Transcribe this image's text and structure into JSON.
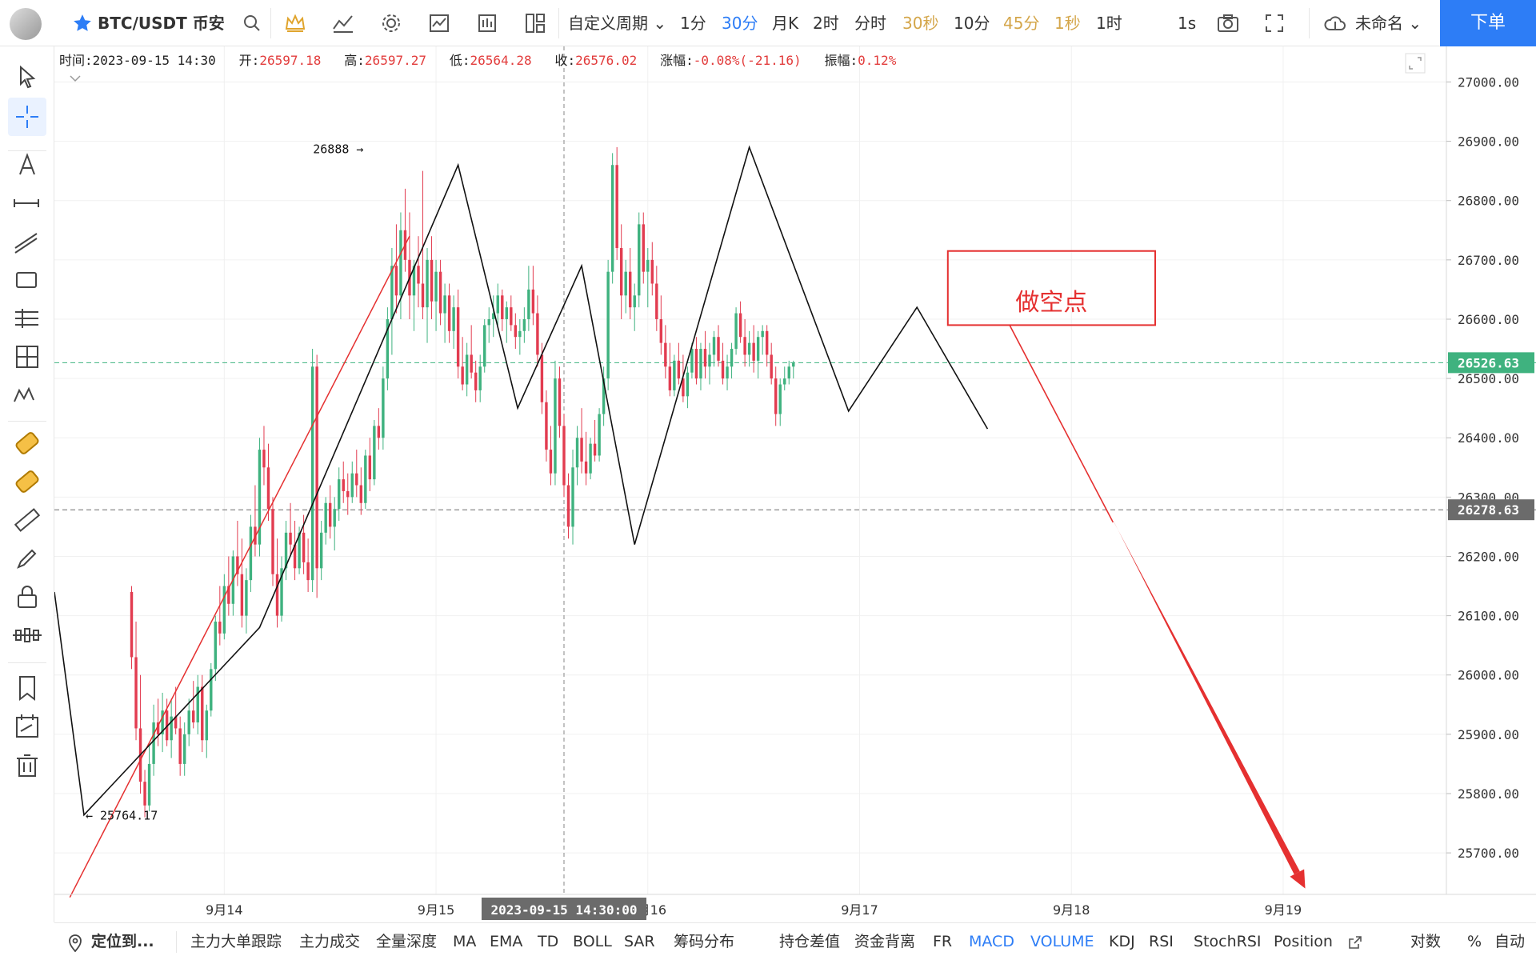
{
  "topbar": {
    "symbol": "BTC/USDT 币安",
    "custom_period": "自定义周期",
    "periods": [
      {
        "label": "1分",
        "color": "#333333"
      },
      {
        "label": "30分",
        "color": "#2d7df6"
      },
      {
        "label": "月K",
        "color": "#333333"
      },
      {
        "label": "2时",
        "color": "#333333"
      },
      {
        "label": "分时",
        "color": "#333333"
      },
      {
        "label": "30秒",
        "color": "#d4a64a"
      },
      {
        "label": "10分",
        "color": "#333333"
      },
      {
        "label": "45分",
        "color": "#d4a64a"
      },
      {
        "label": "1秒",
        "color": "#d4a64a"
      },
      {
        "label": "1时",
        "color": "#333333"
      }
    ],
    "interval": "1s",
    "layout_name": "未命名",
    "order_label": "下单"
  },
  "info": {
    "time_label": "时间:",
    "time": "2023-09-15 14:30",
    "open_label": "开:",
    "open": "26597.18",
    "high_label": "高:",
    "high": "26597.27",
    "low_label": "低:",
    "low": "26564.28",
    "close_label": "收:",
    "close": "26576.02",
    "change_label": "涨幅:",
    "change": "-0.08%(-21.16)",
    "amp_label": "振幅:",
    "amp": "0.12%"
  },
  "bottombar": {
    "locate": "定位到...",
    "indicators": [
      {
        "label": "主力大单跟踪",
        "active": false
      },
      {
        "label": "主力成交",
        "active": false
      },
      {
        "label": "全量深度",
        "active": false
      },
      {
        "label": "MA",
        "active": false
      },
      {
        "label": "EMA",
        "active": false
      },
      {
        "label": "TD",
        "active": false
      },
      {
        "label": "BOLL",
        "active": false
      },
      {
        "label": "SAR",
        "active": false
      },
      {
        "label": "筹码分布",
        "active": false
      },
      {
        "label": "持仓差值",
        "active": false
      },
      {
        "label": "资金背离",
        "active": false
      },
      {
        "label": "FR",
        "active": false
      },
      {
        "label": "MACD",
        "active": true
      },
      {
        "label": "VOLUME",
        "active": true
      },
      {
        "label": "KDJ",
        "active": false
      },
      {
        "label": "RSI",
        "active": false
      },
      {
        "label": "StochRSI",
        "active": false
      },
      {
        "label": "Position",
        "active": false
      }
    ],
    "log_label": "对数",
    "pct_label": "%",
    "auto_label": "自动"
  },
  "chart_data": {
    "type": "candlestick",
    "colors": {
      "up": "#3fb27f",
      "down": "#e23c50",
      "grid": "#f0f0f0"
    },
    "ylim": [
      25630,
      27060
    ],
    "y_ticks": [
      25700,
      25800,
      25900,
      26000,
      26100,
      26200,
      26300,
      26400,
      26500,
      26600,
      26700,
      26800,
      26900,
      27000
    ],
    "y_tick_labels": [
      "25700.00",
      "25800.00",
      "25900.00",
      "26000.00",
      "26100.00",
      "26200.00",
      "26300.00",
      "26400.00",
      "26500.00",
      "26600.00",
      "26700.00",
      "26800.00",
      "26900.00",
      "27000.00"
    ],
    "x_ticks": [
      {
        "label": "9月14",
        "t": 21
      },
      {
        "label": "9月15",
        "t": 69
      },
      {
        "label": "9月16",
        "t": 117
      },
      {
        "label": "9月17",
        "t": 165
      },
      {
        "label": "9月18",
        "t": 213
      },
      {
        "label": "9月19",
        "t": 261
      }
    ],
    "xlim": [
      -17.5,
      298
    ],
    "crosshair": {
      "t": 98,
      "label": "2023-09-15 14:30:00"
    },
    "price_labels": [
      {
        "value": 26526.63,
        "label": "26526.63",
        "bg": "#3fb27f"
      },
      {
        "value": 26278.63,
        "label": "26278.63",
        "bg": "#6b6b6b"
      }
    ],
    "annotations": [
      {
        "t": -10.8,
        "value": 25764.17,
        "label": "← 25764.17",
        "side": "right"
      },
      {
        "t": 53.3,
        "value": 26888,
        "label": "26888 →",
        "side": "left"
      }
    ],
    "zigzag": [
      [
        -17.5,
        26140
      ],
      [
        -10.8,
        25764
      ],
      [
        29,
        26080
      ],
      [
        74,
        26860
      ],
      [
        87.5,
        26450
      ],
      [
        102,
        26690
      ],
      [
        114,
        26220
      ],
      [
        140,
        26890
      ],
      [
        162.5,
        26445
      ],
      [
        178,
        26620
      ],
      [
        194,
        26415
      ]
    ],
    "red_trend": [
      [
        -14,
        25625
      ],
      [
        63,
        26740
      ]
    ],
    "short_box": {
      "label": "做空点",
      "t0": 185,
      "t1": 232,
      "v0": 26590,
      "v1": 26715
    },
    "short_arrow": {
      "from": [
        199,
        26590
      ],
      "to": [
        266,
        25640
      ]
    },
    "candles": [
      [
        26140,
        26150,
        26010,
        26030
      ],
      [
        26030,
        26090,
        25890,
        25910
      ],
      [
        25910,
        26000,
        25800,
        25820
      ],
      [
        25820,
        25840,
        25760,
        25780
      ],
      [
        25780,
        25880,
        25770,
        25850
      ],
      [
        25850,
        25950,
        25830,
        25920
      ],
      [
        25920,
        25960,
        25880,
        25900
      ],
      [
        25900,
        25970,
        25870,
        25940
      ],
      [
        25940,
        25960,
        25880,
        25890
      ],
      [
        25890,
        25960,
        25860,
        25930
      ],
      [
        25930,
        25980,
        25900,
        25910
      ],
      [
        25910,
        25930,
        25830,
        25850
      ],
      [
        25850,
        25920,
        25830,
        25900
      ],
      [
        25900,
        25960,
        25880,
        25940
      ],
      [
        25940,
        25990,
        25910,
        25920
      ],
      [
        25920,
        26000,
        25900,
        25980
      ],
      [
        25980,
        26000,
        25870,
        25890
      ],
      [
        25890,
        25950,
        25860,
        25940
      ],
      [
        25940,
        26020,
        25930,
        26010
      ],
      [
        26010,
        26100,
        25990,
        26090
      ],
      [
        26090,
        26150,
        26050,
        26070
      ],
      [
        26070,
        26170,
        26060,
        26150
      ],
      [
        26150,
        26200,
        26100,
        26120
      ],
      [
        26120,
        26210,
        26100,
        26200
      ],
      [
        26200,
        26260,
        26150,
        26170
      ],
      [
        26170,
        26230,
        26080,
        26100
      ],
      [
        26100,
        26180,
        26070,
        26160
      ],
      [
        26160,
        26270,
        26140,
        26250
      ],
      [
        26250,
        26320,
        26200,
        26220
      ],
      [
        26220,
        26400,
        26200,
        26380
      ],
      [
        26380,
        26420,
        26320,
        26350
      ],
      [
        26350,
        26390,
        26260,
        26280
      ],
      [
        26280,
        26300,
        26150,
        26170
      ],
      [
        26170,
        26230,
        26080,
        26100
      ],
      [
        26100,
        26200,
        26090,
        26180
      ],
      [
        26180,
        26260,
        26160,
        26240
      ],
      [
        26240,
        26290,
        26200,
        26220
      ],
      [
        26220,
        26260,
        26160,
        26180
      ],
      [
        26180,
        26250,
        26170,
        26240
      ],
      [
        26240,
        26270,
        26170,
        26190
      ],
      [
        26190,
        26230,
        26140,
        26160
      ],
      [
        26160,
        26550,
        26140,
        26520
      ],
      [
        26520,
        26540,
        26130,
        26180
      ],
      [
        26180,
        26260,
        26160,
        26240
      ],
      [
        26240,
        26300,
        26220,
        26290
      ],
      [
        26290,
        26320,
        26230,
        26250
      ],
      [
        26250,
        26300,
        26210,
        26280
      ],
      [
        26280,
        26350,
        26260,
        26330
      ],
      [
        26330,
        26360,
        26290,
        26310
      ],
      [
        26310,
        26340,
        26270,
        26300
      ],
      [
        26300,
        26360,
        26290,
        26340
      ],
      [
        26340,
        26380,
        26300,
        26320
      ],
      [
        26320,
        26350,
        26270,
        26290
      ],
      [
        26290,
        26380,
        26280,
        26370
      ],
      [
        26370,
        26400,
        26310,
        26330
      ],
      [
        26330,
        26430,
        26320,
        26420
      ],
      [
        26420,
        26450,
        26380,
        26400
      ],
      [
        26400,
        26520,
        26380,
        26500
      ],
      [
        26500,
        26620,
        26480,
        26600
      ],
      [
        26600,
        26720,
        26540,
        26690
      ],
      [
        26690,
        26760,
        26610,
        26640
      ],
      [
        26640,
        26780,
        26600,
        26750
      ],
      [
        26750,
        26820,
        26680,
        26700
      ],
      [
        26700,
        26780,
        26600,
        26640
      ],
      [
        26640,
        26700,
        26580,
        26690
      ],
      [
        26690,
        26740,
        26620,
        26660
      ],
      [
        26660,
        26850,
        26600,
        26620
      ],
      [
        26620,
        26720,
        26560,
        26700
      ],
      [
        26700,
        26740,
        26600,
        26630
      ],
      [
        26630,
        26700,
        26580,
        26680
      ],
      [
        26680,
        26700,
        26590,
        26610
      ],
      [
        26610,
        26660,
        26560,
        26640
      ],
      [
        26640,
        26660,
        26560,
        26580
      ],
      [
        26580,
        26640,
        26550,
        26620
      ],
      [
        26620,
        26650,
        26500,
        26520
      ],
      [
        26520,
        26570,
        26480,
        26490
      ],
      [
        26490,
        26560,
        26470,
        26540
      ],
      [
        26540,
        26590,
        26500,
        26510
      ],
      [
        26510,
        26530,
        26460,
        26480
      ],
      [
        26480,
        26540,
        26460,
        26520
      ],
      [
        26520,
        26600,
        26510,
        26590
      ],
      [
        26590,
        26620,
        26560,
        26600
      ],
      [
        26600,
        26640,
        26570,
        26610
      ],
      [
        26610,
        26660,
        26590,
        26640
      ],
      [
        26640,
        26650,
        26580,
        26600
      ],
      [
        26600,
        26630,
        26560,
        26620
      ],
      [
        26620,
        26640,
        26580,
        26590
      ],
      [
        26590,
        26610,
        26550,
        26570
      ],
      [
        26570,
        26600,
        26540,
        26580
      ],
      [
        26580,
        26620,
        26560,
        26600
      ],
      [
        26600,
        26690,
        26580,
        26650
      ],
      [
        26650,
        26690,
        26590,
        26610
      ],
      [
        26610,
        26640,
        26520,
        26540
      ],
      [
        26540,
        26560,
        26440,
        26460
      ],
      [
        26460,
        26480,
        26360,
        26380
      ],
      [
        26380,
        26420,
        26320,
        26340
      ],
      [
        26340,
        26530,
        26320,
        26500
      ],
      [
        26500,
        26520,
        26400,
        26420
      ],
      [
        26420,
        26440,
        26300,
        26320
      ],
      [
        26320,
        26340,
        26230,
        26250
      ],
      [
        26250,
        26380,
        26220,
        26350
      ],
      [
        26350,
        26420,
        26320,
        26400
      ],
      [
        26400,
        26450,
        26340,
        26360
      ],
      [
        26360,
        26410,
        26320,
        26340
      ],
      [
        26340,
        26400,
        26330,
        26390
      ],
      [
        26390,
        26430,
        26360,
        26370
      ],
      [
        26370,
        26450,
        26360,
        26440
      ],
      [
        26440,
        26520,
        26420,
        26500
      ],
      [
        26500,
        26700,
        26480,
        26680
      ],
      [
        26680,
        26880,
        26660,
        26860
      ],
      [
        26860,
        26890,
        26700,
        26720
      ],
      [
        26720,
        26760,
        26600,
        26640
      ],
      [
        26640,
        26700,
        26610,
        26680
      ],
      [
        26680,
        26720,
        26600,
        26620
      ],
      [
        26620,
        26660,
        26580,
        26640
      ],
      [
        26640,
        26780,
        26620,
        26760
      ],
      [
        26760,
        26780,
        26660,
        26680
      ],
      [
        26680,
        26720,
        26620,
        26700
      ],
      [
        26700,
        26730,
        26640,
        26660
      ],
      [
        26660,
        26690,
        26580,
        26600
      ],
      [
        26600,
        26640,
        26540,
        26560
      ],
      [
        26560,
        26590,
        26500,
        26520
      ],
      [
        26520,
        26560,
        26470,
        26480
      ],
      [
        26480,
        26540,
        26470,
        26530
      ],
      [
        26530,
        26560,
        26490,
        26500
      ],
      [
        26500,
        26540,
        26460,
        26470
      ],
      [
        26470,
        26520,
        26450,
        26510
      ],
      [
        26510,
        26560,
        26500,
        26550
      ],
      [
        26550,
        26570,
        26490,
        26500
      ],
      [
        26500,
        26560,
        26480,
        26550
      ],
      [
        26550,
        26580,
        26500,
        26520
      ],
      [
        26520,
        26560,
        26490,
        26540
      ],
      [
        26540,
        26580,
        26520,
        26570
      ],
      [
        26570,
        26590,
        26520,
        26530
      ],
      [
        26530,
        26560,
        26490,
        26500
      ],
      [
        26500,
        26540,
        26480,
        26520
      ],
      [
        26520,
        26560,
        26500,
        26550
      ],
      [
        26550,
        26620,
        26540,
        26610
      ],
      [
        26610,
        26630,
        26560,
        26570
      ],
      [
        26570,
        26600,
        26520,
        26540
      ],
      [
        26540,
        26580,
        26520,
        26560
      ],
      [
        26560,
        26590,
        26510,
        26530
      ],
      [
        26530,
        26580,
        26500,
        26570
      ],
      [
        26570,
        26590,
        26540,
        26580
      ],
      [
        26580,
        26590,
        26520,
        26540
      ],
      [
        26540,
        26560,
        26490,
        26500
      ],
      [
        26500,
        26520,
        26420,
        26440
      ],
      [
        26440,
        26500,
        26420,
        26490
      ],
      [
        26490,
        26520,
        26480,
        26500
      ],
      [
        26500,
        26530,
        26490,
        26520
      ],
      [
        26520,
        26530,
        26500,
        26527
      ]
    ]
  }
}
